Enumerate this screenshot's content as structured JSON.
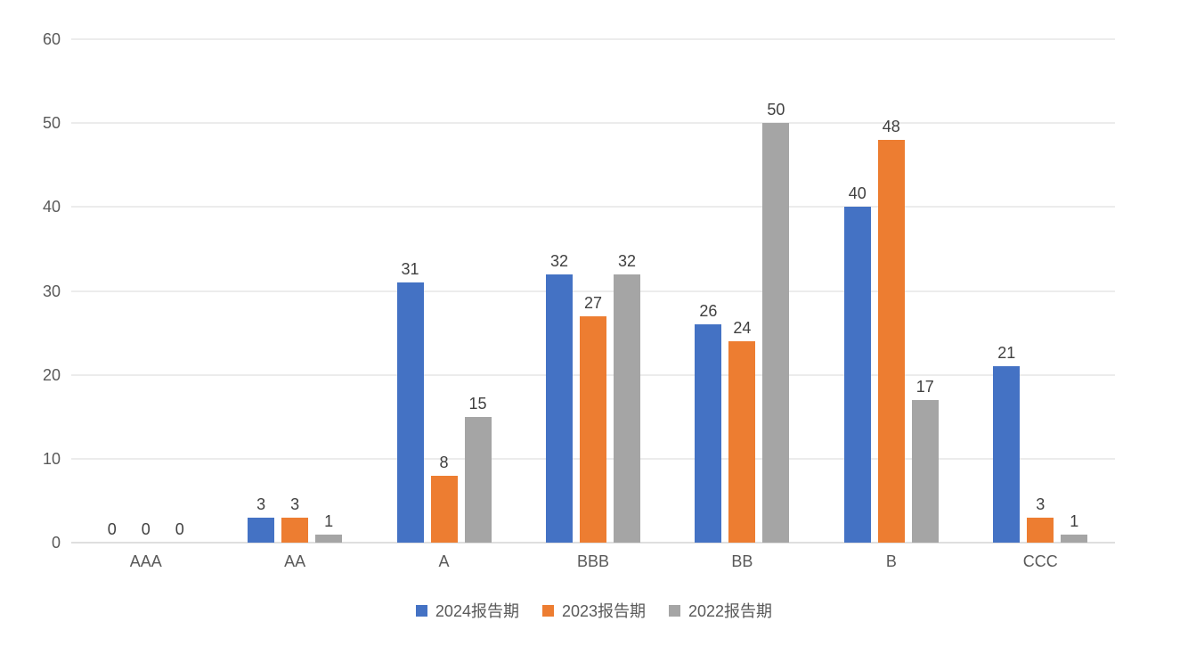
{
  "chart_data": {
    "type": "bar",
    "title": "",
    "xlabel": "",
    "ylabel": "",
    "categories": [
      "AAA",
      "AA",
      "A",
      "BBB",
      "BB",
      "B",
      "CCC"
    ],
    "series": [
      {
        "name": "2024报告期",
        "color": "#4472C4",
        "values": [
          0,
          3,
          31,
          32,
          26,
          40,
          21
        ]
      },
      {
        "name": "2023报告期",
        "color": "#ED7D31",
        "values": [
          0,
          3,
          8,
          27,
          24,
          48,
          3
        ]
      },
      {
        "name": "2022报告期",
        "color": "#A5A5A5",
        "values": [
          0,
          1,
          15,
          32,
          50,
          17,
          1
        ]
      }
    ],
    "ylim": [
      0,
      60
    ],
    "yticks": [
      0,
      10,
      20,
      30,
      40,
      50,
      60
    ],
    "grid": true,
    "data_labels": true,
    "legend_position": "bottom"
  },
  "colors": {
    "gridline": "#D9D9D9",
    "axis_line": "#BFBFBF",
    "tick_label_text": "#595959",
    "data_label_text": "#404040",
    "background": "#FFFFFF"
  }
}
